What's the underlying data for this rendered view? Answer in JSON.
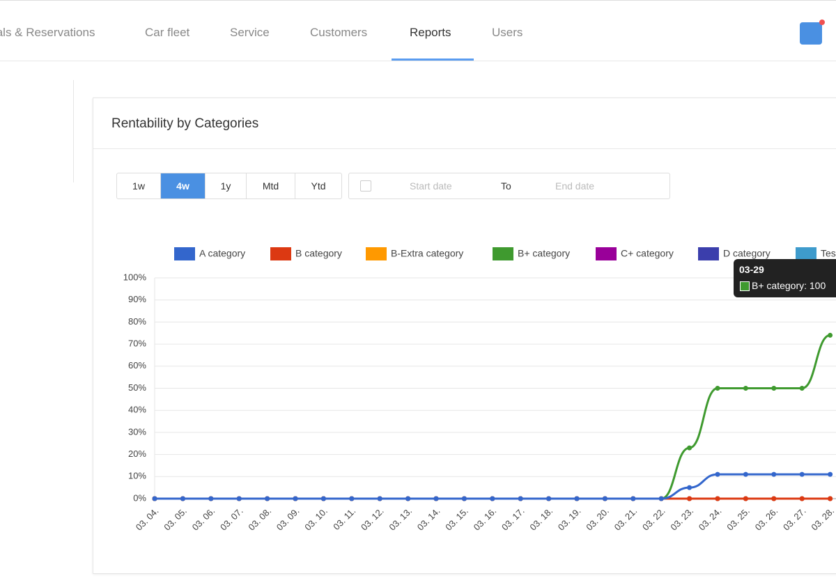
{
  "nav": {
    "items": [
      "tals & Reservations",
      "Car fleet",
      "Service",
      "Customers",
      "Reports",
      "Users"
    ],
    "active_index": 4
  },
  "card": {
    "title": "Rentability by Categories"
  },
  "range_buttons": {
    "items": [
      "1w",
      "4w",
      "1y",
      "Mtd",
      "Ytd"
    ],
    "active_index": 1
  },
  "date_range": {
    "start": "Start date",
    "separator": "To",
    "end": "End date"
  },
  "tooltip": {
    "title": "03-29",
    "text": "B+ category: 100"
  },
  "chart_data": {
    "type": "line",
    "categories": [
      "03. 04.",
      "03. 05.",
      "03. 06.",
      "03. 07.",
      "03. 08.",
      "03. 09.",
      "03. 10.",
      "03. 11.",
      "03. 12.",
      "03. 13.",
      "03. 14.",
      "03. 15.",
      "03. 16.",
      "03. 17.",
      "03. 18.",
      "03. 19.",
      "03. 20.",
      "03. 21.",
      "03. 22.",
      "03. 23.",
      "03. 24.",
      "03. 25.",
      "03. 26.",
      "03. 27.",
      "03. 28."
    ],
    "series": [
      {
        "name": "A category",
        "color": "#3366cc",
        "values": [
          0,
          0,
          0,
          0,
          0,
          0,
          0,
          0,
          0,
          0,
          0,
          0,
          0,
          0,
          0,
          0,
          0,
          0,
          0,
          5,
          11,
          11,
          11,
          11,
          11
        ]
      },
      {
        "name": "B category",
        "color": "#dc3912",
        "values": [
          0,
          0,
          0,
          0,
          0,
          0,
          0,
          0,
          0,
          0,
          0,
          0,
          0,
          0,
          0,
          0,
          0,
          0,
          0,
          0,
          0,
          0,
          0,
          0,
          0
        ]
      },
      {
        "name": "B-Extra category",
        "color": "#ff9900",
        "values": [
          0,
          0,
          0,
          0,
          0,
          0,
          0,
          0,
          0,
          0,
          0,
          0,
          0,
          0,
          0,
          0,
          0,
          0,
          0,
          0,
          0,
          0,
          0,
          0,
          0
        ]
      },
      {
        "name": "B+ category",
        "color": "#3f9a2f",
        "values": [
          0,
          0,
          0,
          0,
          0,
          0,
          0,
          0,
          0,
          0,
          0,
          0,
          0,
          0,
          0,
          0,
          0,
          0,
          0,
          23,
          50,
          50,
          50,
          50,
          74
        ]
      },
      {
        "name": "C+ category",
        "color": "#990099",
        "values": [
          0,
          0,
          0,
          0,
          0,
          0,
          0,
          0,
          0,
          0,
          0,
          0,
          0,
          0,
          0,
          0,
          0,
          0,
          0,
          0,
          0,
          0,
          0,
          0,
          0
        ]
      },
      {
        "name": "D category",
        "color": "#3b3eac",
        "values": [
          0,
          0,
          0,
          0,
          0,
          0,
          0,
          0,
          0,
          0,
          0,
          0,
          0,
          0,
          0,
          0,
          0,
          0,
          0,
          0,
          0,
          0,
          0,
          0,
          0
        ]
      },
      {
        "name": "Tes",
        "color": "#3e9bcc",
        "values": [
          0,
          0,
          0,
          0,
          0,
          0,
          0,
          0,
          0,
          0,
          0,
          0,
          0,
          0,
          0,
          0,
          0,
          0,
          0,
          0,
          0,
          0,
          0,
          0,
          0
        ]
      }
    ],
    "ylim": [
      0,
      100
    ],
    "yticks": [
      {
        "value": 0,
        "label": "0%"
      },
      {
        "value": 10,
        "label": "10%"
      },
      {
        "value": 20,
        "label": "20%"
      },
      {
        "value": 30,
        "label": "30%"
      },
      {
        "value": 40,
        "label": "40%"
      },
      {
        "value": 50,
        "label": "50%"
      },
      {
        "value": 60,
        "label": "60%"
      },
      {
        "value": 70,
        "label": "70%"
      },
      {
        "value": 80,
        "label": "80%"
      },
      {
        "value": 90,
        "label": "90%"
      },
      {
        "value": 100,
        "label": "100%"
      }
    ],
    "grid": true,
    "legend": "top"
  }
}
